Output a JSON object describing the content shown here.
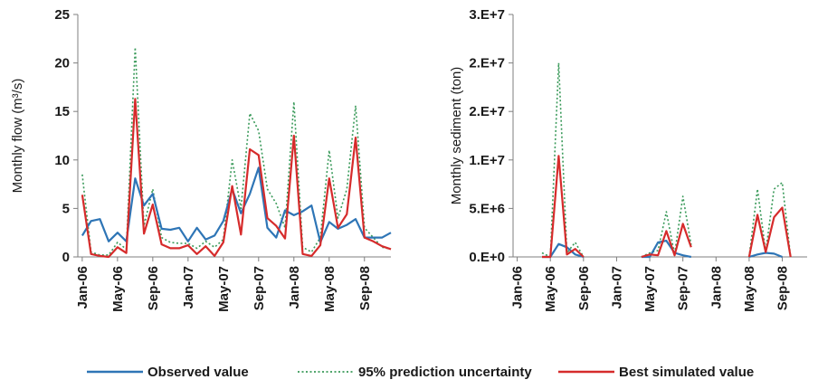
{
  "chart_data": [
    {
      "type": "line",
      "ylabel": "Monthly flow (m³/s)",
      "ylim": [
        0,
        25
      ],
      "yticks": [
        "0",
        "5",
        "10",
        "15",
        "20",
        "25"
      ],
      "x_tick_labels": [
        "Jan-06",
        "May-06",
        "Sep-06",
        "Jan-07",
        "May-07",
        "Sep-07",
        "Jan-08",
        "May-08",
        "Sep-08"
      ],
      "months": 36,
      "series": [
        {
          "name": "Observed value",
          "color": "#2e75b6",
          "dash": "solid",
          "values": [
            2.2,
            3.7,
            3.9,
            1.6,
            2.5,
            1.6,
            8.1,
            5.3,
            6.5,
            2.9,
            2.8,
            3.0,
            1.6,
            3.0,
            1.8,
            2.2,
            3.7,
            7.0,
            4.5,
            6.5,
            9.2,
            3.0,
            2.0,
            4.8,
            4.3,
            4.7,
            5.3,
            1.5,
            3.6,
            2.9,
            3.3,
            3.9,
            2.0,
            2.0,
            2.0,
            2.5
          ]
        },
        {
          "name": "95% prediction uncertainty",
          "color": "#3a9a5a",
          "dash": "dotted",
          "values": [
            8.5,
            0.5,
            0.2,
            0.2,
            1.5,
            0.8,
            21.6,
            3.2,
            7.0,
            2.0,
            1.5,
            1.4,
            1.4,
            0.9,
            1.6,
            1.0,
            1.8,
            10.0,
            5.0,
            14.8,
            13.0,
            7.0,
            5.5,
            3.0,
            16.0,
            1.0,
            0.5,
            2.0,
            11.0,
            4.0,
            7.0,
            15.6,
            3.0,
            2.0,
            1.0,
            0.8
          ]
        },
        {
          "name": "Best simulated value",
          "color": "#d62b2b",
          "dash": "solid",
          "values": [
            6.4,
            0.3,
            0.1,
            0.0,
            1.0,
            0.4,
            16.3,
            2.4,
            5.4,
            1.3,
            0.9,
            0.9,
            1.2,
            0.3,
            1.1,
            0.1,
            1.5,
            7.3,
            2.3,
            11.1,
            10.5,
            4.0,
            3.2,
            1.9,
            12.5,
            0.3,
            0.1,
            1.2,
            8.1,
            3.0,
            4.4,
            12.3,
            2.0,
            1.6,
            1.1,
            0.8
          ]
        }
      ]
    },
    {
      "type": "line",
      "ylabel": "Monthly sediment (ton)",
      "ylim": [
        0,
        30000000
      ],
      "yticks": [
        "0.E+0",
        "5.E+6",
        "1.E+7",
        "2.E+7",
        "2.E+7",
        "3.E+7"
      ],
      "x_tick_labels": [
        "Jan-06",
        "May-06",
        "Sep-06",
        "Jan-07",
        "May-07",
        "Sep-07",
        "Jan-08",
        "May-08",
        "Sep-08"
      ],
      "months": 36,
      "series": [
        {
          "name": "Observed value",
          "color": "#2e75b6",
          "dash": "solid",
          "values": [
            null,
            null,
            null,
            0,
            0,
            1600000,
            1200000,
            300000,
            0,
            null,
            null,
            null,
            null,
            null,
            null,
            0,
            0,
            1800000,
            2000000,
            500000,
            200000,
            0,
            null,
            null,
            null,
            null,
            null,
            null,
            0,
            300000,
            500000,
            400000,
            0,
            null,
            null,
            null
          ]
        },
        {
          "name": "95% prediction uncertainty",
          "color": "#3a9a5a",
          "dash": "dotted",
          "values": [
            null,
            null,
            null,
            500000,
            0,
            24000000,
            500000,
            1800000,
            0,
            null,
            null,
            null,
            null,
            null,
            null,
            0,
            500000,
            800000,
            5600000,
            300000,
            7500000,
            1500000,
            null,
            null,
            null,
            null,
            null,
            null,
            0,
            8400000,
            600000,
            8400000,
            9200000,
            0,
            null,
            null
          ]
        },
        {
          "name": "Best simulated value",
          "color": "#d62b2b",
          "dash": "solid",
          "values": [
            null,
            null,
            null,
            0,
            0,
            12500000,
            300000,
            1000000,
            0,
            null,
            null,
            null,
            null,
            null,
            null,
            0,
            300000,
            200000,
            3200000,
            200000,
            4100000,
            1200000,
            null,
            null,
            null,
            null,
            null,
            null,
            0,
            5200000,
            600000,
            4900000,
            6100000,
            0,
            null,
            null
          ]
        }
      ]
    }
  ],
  "legend": [
    {
      "label": "Observed value",
      "color": "#2e75b6",
      "dash": "solid"
    },
    {
      "label": "95% prediction uncertainty",
      "color": "#3a9a5a",
      "dash": "dotted"
    },
    {
      "label": "Best simulated value",
      "color": "#d62b2b",
      "dash": "solid"
    }
  ]
}
